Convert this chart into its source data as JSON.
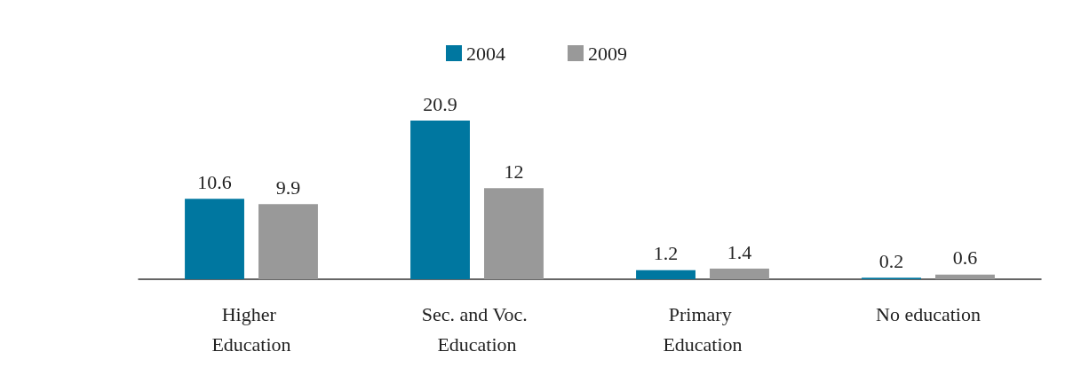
{
  "chart_data": {
    "type": "bar",
    "categories": [
      "Higher Education",
      "Sec. and Voc. Education",
      "Primary Education",
      "No education"
    ],
    "series": [
      {
        "name": "2004",
        "color": "#0077a0",
        "values": [
          10.6,
          20.9,
          1.2,
          0.2
        ]
      },
      {
        "name": "2009",
        "color": "#999999",
        "values": [
          9.9,
          12,
          1.4,
          0.6
        ]
      }
    ],
    "data_labels": true,
    "legend": "top"
  }
}
